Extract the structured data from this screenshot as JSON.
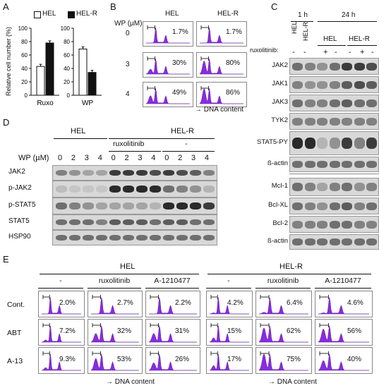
{
  "panels": {
    "A": "A",
    "B": "B",
    "C": "C",
    "D": "D",
    "E": "E"
  },
  "panelA": {
    "legend": [
      "HEL",
      "HEL-R"
    ],
    "ylabel": "Relative cell number (%)",
    "chart_data": [
      {
        "type": "bar",
        "categories": [
          "Ruxo"
        ],
        "series": [
          {
            "name": "HEL",
            "values": [
              43
            ]
          },
          {
            "name": "HEL-R",
            "values": [
              78
            ]
          }
        ],
        "ylim": [
          0,
          100
        ],
        "yticks": [
          "0",
          "20",
          "40",
          "60",
          "80",
          "100"
        ]
      },
      {
        "type": "bar",
        "categories": [
          "WP"
        ],
        "series": [
          {
            "name": "HEL",
            "values": [
              69
            ]
          },
          {
            "name": "HEL-R",
            "values": [
              34
            ]
          }
        ],
        "ylim": [
          0,
          100
        ],
        "yticks": [
          "0",
          "20",
          "40",
          "60",
          "80",
          "100"
        ]
      }
    ]
  },
  "panelB": {
    "col_headers": [
      "HEL",
      "HEL-R"
    ],
    "wp_label": "WP (µM)",
    "rows": [
      {
        "dose": "0",
        "values": [
          "1.7%",
          "1.7%"
        ]
      },
      {
        "dose": "3",
        "values": [
          "30%",
          "80%"
        ]
      },
      {
        "dose": "4",
        "values": [
          "49%",
          "86%"
        ]
      }
    ],
    "xaxis": "→ DNA content"
  },
  "panelC": {
    "time_headers": [
      "1 h",
      "24 h"
    ],
    "cell_headers": [
      "HEL",
      "HEL-R",
      "HEL",
      "HEL-R"
    ],
    "rux_label": "ruxolitinib:",
    "rux_signs": [
      "-",
      "-",
      "+",
      "-",
      "-",
      "+",
      "-"
    ],
    "blots": [
      "JAK2",
      "JAK1",
      "JAK3",
      "TYK2",
      "STAT5-PY",
      "ß-actin",
      "Mcl-1",
      "Bcl-XL",
      "Bcl-2",
      "ß-actin"
    ]
  },
  "panelD": {
    "group_headers": [
      "HEL",
      "HEL-R"
    ],
    "sub_headers": [
      "ruxolitinib",
      "-"
    ],
    "wp_label": "WP (µM)",
    "doses": [
      "0",
      "2",
      "3",
      "4",
      "0",
      "2",
      "3",
      "4",
      "0",
      "2",
      "3",
      "4"
    ],
    "blots": [
      "JAK2",
      "p-JAK2",
      "p-STAT5",
      "STAT5",
      "HSP90"
    ]
  },
  "panelE": {
    "group_headers": [
      "HEL",
      "HEL-R"
    ],
    "col_headers": [
      "-",
      "ruxolitinib",
      "A-1210477",
      "-",
      "ruxolitinib",
      "A-1210477"
    ],
    "rows": [
      {
        "label": "Cont.",
        "values": [
          "2.0%",
          "2.7%",
          "2.2%",
          "4.2%",
          "6.4%",
          "4.6%"
        ]
      },
      {
        "label": "ABT",
        "values": [
          "7.2%",
          "32%",
          "31%",
          "15%",
          "62%",
          "56%"
        ]
      },
      {
        "label": "A-13",
        "values": [
          "9.3%",
          "53%",
          "26%",
          "17%",
          "75%",
          "40%"
        ]
      }
    ],
    "xaxis": "→ DNA content"
  }
}
